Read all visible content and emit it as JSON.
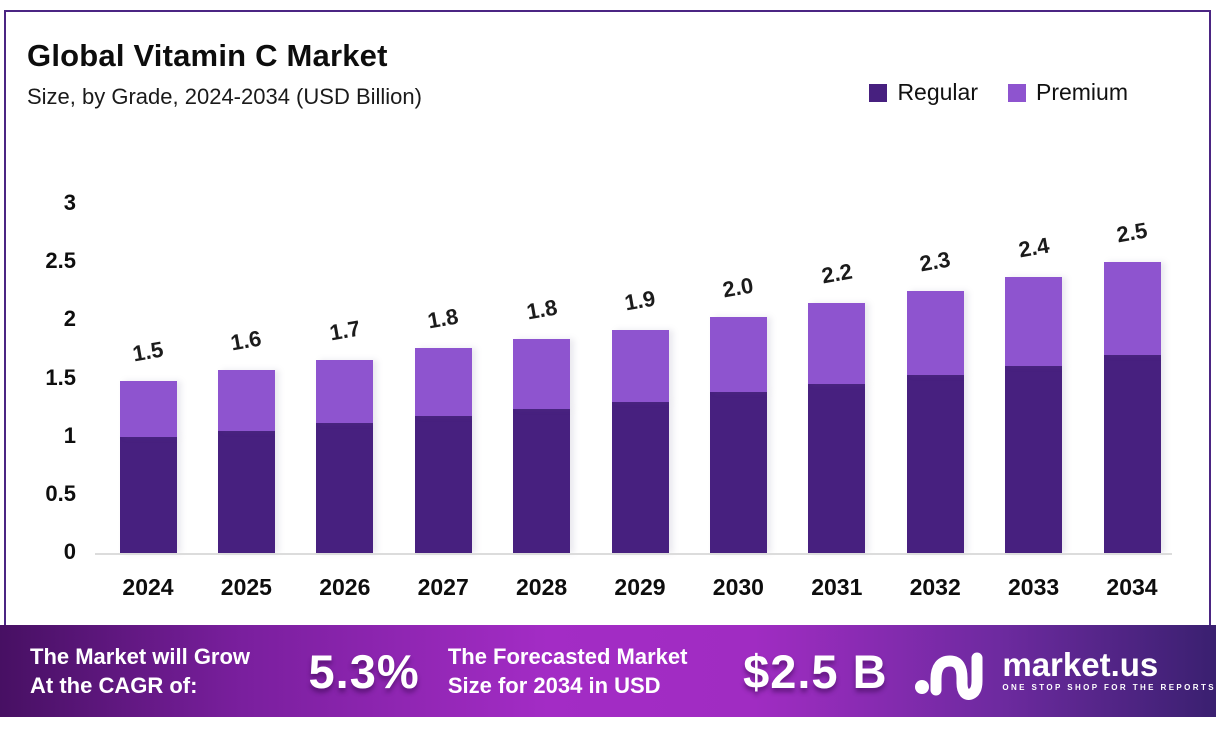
{
  "title": "Global Vitamin C Market",
  "subtitle": "Size, by Grade, 2024-2034 (USD Billion)",
  "legend": [
    {
      "label": "Regular",
      "color": "#47207f"
    },
    {
      "label": "Premium",
      "color": "#8e54cf"
    }
  ],
  "chart_data": {
    "type": "bar",
    "stacked": true,
    "title": "Global Vitamin C Market",
    "subtitle": "Size, by Grade, 2024-2034 (USD Billion)",
    "unit": "USD Billion",
    "categories": [
      "2024",
      "2025",
      "2026",
      "2027",
      "2028",
      "2029",
      "2030",
      "2031",
      "2032",
      "2033",
      "2034"
    ],
    "series": [
      {
        "name": "Regular",
        "color": "#47207f",
        "values": [
          1.0,
          1.05,
          1.12,
          1.18,
          1.24,
          1.3,
          1.38,
          1.45,
          1.53,
          1.61,
          1.7
        ]
      },
      {
        "name": "Premium",
        "color": "#8e54cf",
        "values": [
          0.48,
          0.52,
          0.54,
          0.58,
          0.6,
          0.62,
          0.65,
          0.7,
          0.72,
          0.76,
          0.8
        ]
      }
    ],
    "total_labels": [
      "1.5",
      "1.6",
      "1.7",
      "1.8",
      "1.8",
      "1.9",
      "2.0",
      "2.2",
      "2.3",
      "2.4",
      "2.5"
    ],
    "ylim": [
      0,
      3
    ],
    "ytick_labels": [
      "0",
      "0.5",
      "1",
      "1.5",
      "2",
      "2.5",
      "3"
    ],
    "grid": false,
    "legend_position": "top-right"
  },
  "banner": {
    "cagr_line1": "The Market will Grow",
    "cagr_line2": "At the CAGR of:",
    "cagr_value": "5.3%",
    "forecast_line1": "The Forecasted Market",
    "forecast_line2": "Size for 2034 in USD",
    "forecast_value": "$2.5 B",
    "logo_name": "market.us",
    "logo_tagline": "ONE STOP SHOP FOR THE REPORTS"
  },
  "colors": {
    "frame_border": "#4b2583",
    "regular_bar": "#47207f",
    "premium_bar": "#8e54cf",
    "axis_line": "#dcdcdc",
    "banner_left": "#471063",
    "banner_mid": "#a32cc5",
    "banner_right": "#3a2070",
    "text": "#0d0d0d",
    "banner_text": "#ffffff"
  }
}
